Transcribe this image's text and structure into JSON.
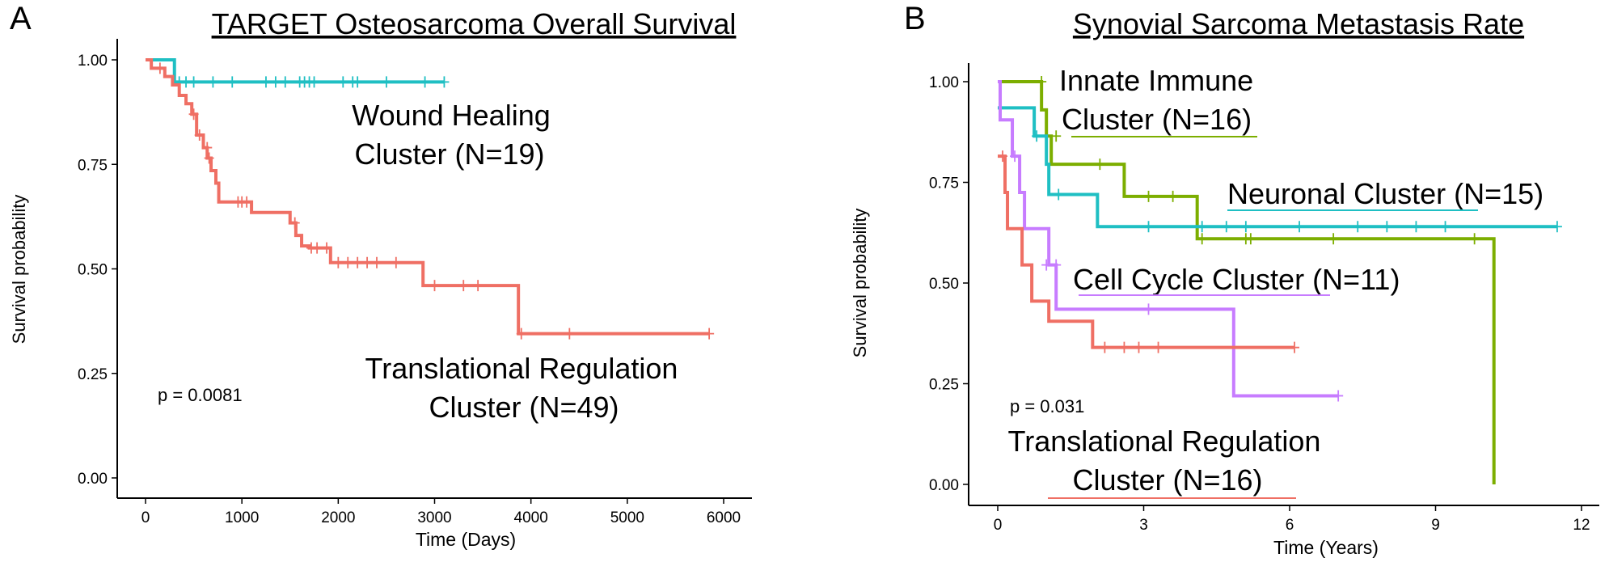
{
  "figure": {
    "panel_a_letter": "A",
    "panel_b_letter": "B"
  },
  "chart_data": [
    {
      "type": "line",
      "subtype": "kaplan-meier",
      "panel": "A",
      "title": "TARGET Osteosarcoma Overall Survival",
      "xlabel": "Time (Days)",
      "ylabel": "Survival probability",
      "xlim": [
        0,
        6200
      ],
      "ylim": [
        0,
        1
      ],
      "xticks": [
        0,
        1000,
        2000,
        3000,
        4000,
        5000,
        6000
      ],
      "xtick_labels": [
        "0",
        "1000",
        "2000",
        "3000",
        "4000",
        "5000",
        "6000"
      ],
      "yticks": [
        0,
        0.25,
        0.5,
        0.75,
        1
      ],
      "ytick_labels": [
        "0.00",
        "0.25",
        "0.50",
        "0.75",
        "1.00"
      ],
      "pvalue": "p = 0.0081",
      "grid": false,
      "series": [
        {
          "name": "Wound Healing Cluster (N=19)",
          "color": "#1fbfc3",
          "label_lines": [
            "Wound Healing",
            "Cluster (N=19)"
          ],
          "steps": [
            [
              0,
              1.0
            ],
            [
              300,
              0.947
            ],
            [
              3100,
              0.947
            ]
          ],
          "censors": [
            [
              350,
              0.947
            ],
            [
              420,
              0.947
            ],
            [
              500,
              0.947
            ],
            [
              700,
              0.947
            ],
            [
              900,
              0.947
            ],
            [
              1250,
              0.947
            ],
            [
              1350,
              0.947
            ],
            [
              1450,
              0.947
            ],
            [
              1600,
              0.947
            ],
            [
              1650,
              0.947
            ],
            [
              1700,
              0.947
            ],
            [
              1750,
              0.947
            ],
            [
              2050,
              0.947
            ],
            [
              2150,
              0.947
            ],
            [
              2200,
              0.947
            ],
            [
              2500,
              0.947
            ],
            [
              2900,
              0.947
            ],
            [
              3100,
              0.947
            ]
          ]
        },
        {
          "name": "Translational Regulation Cluster (N=49)",
          "color": "#ef6f64",
          "label_lines": [
            "Translational Regulation",
            "Cluster (N=49)"
          ],
          "steps": [
            [
              0,
              1.0
            ],
            [
              60,
              0.98
            ],
            [
              200,
              0.96
            ],
            [
              280,
              0.94
            ],
            [
              350,
              0.915
            ],
            [
              420,
              0.895
            ],
            [
              480,
              0.87
            ],
            [
              530,
              0.82
            ],
            [
              600,
              0.79
            ],
            [
              640,
              0.765
            ],
            [
              680,
              0.735
            ],
            [
              730,
              0.705
            ],
            [
              760,
              0.66
            ],
            [
              1100,
              0.635
            ],
            [
              1500,
              0.61
            ],
            [
              1560,
              0.58
            ],
            [
              1620,
              0.555
            ],
            [
              1700,
              0.55
            ],
            [
              1920,
              0.515
            ],
            [
              2880,
              0.46
            ],
            [
              3870,
              0.345
            ],
            [
              5850,
              0.345
            ]
          ],
          "censors": [
            [
              150,
              0.98
            ],
            [
              500,
              0.87
            ],
            [
              560,
              0.82
            ],
            [
              640,
              0.79
            ],
            [
              660,
              0.765
            ],
            [
              960,
              0.66
            ],
            [
              1000,
              0.66
            ],
            [
              1050,
              0.66
            ],
            [
              1550,
              0.61
            ],
            [
              1720,
              0.55
            ],
            [
              1780,
              0.55
            ],
            [
              1880,
              0.55
            ],
            [
              2000,
              0.515
            ],
            [
              2100,
              0.515
            ],
            [
              2200,
              0.515
            ],
            [
              2300,
              0.515
            ],
            [
              2400,
              0.515
            ],
            [
              2600,
              0.515
            ],
            [
              3000,
              0.46
            ],
            [
              3300,
              0.46
            ],
            [
              3450,
              0.46
            ],
            [
              3900,
              0.345
            ],
            [
              4400,
              0.345
            ],
            [
              5850,
              0.345
            ]
          ]
        }
      ]
    },
    {
      "type": "line",
      "subtype": "kaplan-meier",
      "panel": "B",
      "title": "Synovial Sarcoma Metastasis Rate",
      "xlabel": "Time (Years)",
      "ylabel": "Survival probability",
      "xlim": [
        0,
        12
      ],
      "ylim": [
        0,
        1
      ],
      "xticks": [
        0,
        3,
        6,
        9,
        12
      ],
      "xtick_labels": [
        "0",
        "3",
        "6",
        "9",
        "12"
      ],
      "yticks": [
        0,
        0.25,
        0.5,
        0.75,
        1
      ],
      "ytick_labels": [
        "0.00",
        "0.25",
        "0.50",
        "0.75",
        "1.00"
      ],
      "pvalue": "p = 0.031",
      "grid": false,
      "series": [
        {
          "name": "Innate Immune Cluster (N=16)",
          "color": "#7cae00",
          "label_lines": [
            "Innate Immune",
            "Cluster (N=16)"
          ],
          "steps": [
            [
              0,
              1.0
            ],
            [
              0.9,
              0.93
            ],
            [
              1.0,
              0.865
            ],
            [
              1.1,
              0.795
            ],
            [
              2.6,
              0.715
            ],
            [
              4.1,
              0.61
            ],
            [
              10.2,
              0.0
            ]
          ],
          "censors": [
            [
              0.9,
              1.0
            ],
            [
              1.2,
              0.865
            ],
            [
              2.1,
              0.795
            ],
            [
              3.1,
              0.715
            ],
            [
              3.6,
              0.715
            ],
            [
              4.2,
              0.61
            ],
            [
              5.1,
              0.61
            ],
            [
              5.2,
              0.61
            ],
            [
              6.9,
              0.61
            ],
            [
              9.8,
              0.61
            ]
          ]
        },
        {
          "name": "Neuronal Cluster (N=15)",
          "color": "#1fbfc3",
          "label_lines": [
            "Neuronal Cluster (N=15)"
          ],
          "steps": [
            [
              0,
              0.935
            ],
            [
              0.75,
              0.865
            ],
            [
              1.0,
              0.795
            ],
            [
              1.05,
              0.72
            ],
            [
              2.05,
              0.64
            ],
            [
              11.5,
              0.64
            ]
          ],
          "censors": [
            [
              0.8,
              0.865
            ],
            [
              1.25,
              0.72
            ],
            [
              3.1,
              0.64
            ],
            [
              4.2,
              0.64
            ],
            [
              4.7,
              0.64
            ],
            [
              5.1,
              0.64
            ],
            [
              6.2,
              0.64
            ],
            [
              7.4,
              0.64
            ],
            [
              8.0,
              0.64
            ],
            [
              8.6,
              0.64
            ],
            [
              9.2,
              0.64
            ],
            [
              11.5,
              0.64
            ]
          ]
        },
        {
          "name": "Cell Cycle Cluster (N=11)",
          "color": "#c77cff",
          "label_lines": [
            "Cell Cycle Cluster (N=11)"
          ],
          "steps": [
            [
              0,
              1.0
            ],
            [
              0.05,
              0.905
            ],
            [
              0.3,
              0.815
            ],
            [
              0.45,
              0.725
            ],
            [
              0.55,
              0.635
            ],
            [
              1.05,
              0.545
            ],
            [
              1.2,
              0.435
            ],
            [
              4.85,
              0.22
            ],
            [
              7.0,
              0.22
            ]
          ],
          "censors": [
            [
              0.35,
              0.815
            ],
            [
              1.0,
              0.545
            ],
            [
              1.2,
              0.545
            ],
            [
              3.1,
              0.435
            ],
            [
              7.0,
              0.22
            ]
          ]
        },
        {
          "name": "Translational Regulation Cluster (N=16)",
          "color": "#ef6f64",
          "label_lines": [
            "Translational Regulation",
            "Cluster (N=16)"
          ],
          "steps": [
            [
              0,
              0.815
            ],
            [
              0.15,
              0.725
            ],
            [
              0.2,
              0.635
            ],
            [
              0.5,
              0.545
            ],
            [
              0.7,
              0.455
            ],
            [
              1.05,
              0.405
            ],
            [
              1.95,
              0.34
            ],
            [
              6.1,
              0.34
            ]
          ],
          "censors": [
            [
              0.1,
              0.815
            ],
            [
              2.2,
              0.34
            ],
            [
              2.6,
              0.34
            ],
            [
              2.9,
              0.34
            ],
            [
              3.3,
              0.34
            ],
            [
              6.1,
              0.34
            ]
          ]
        }
      ]
    }
  ]
}
